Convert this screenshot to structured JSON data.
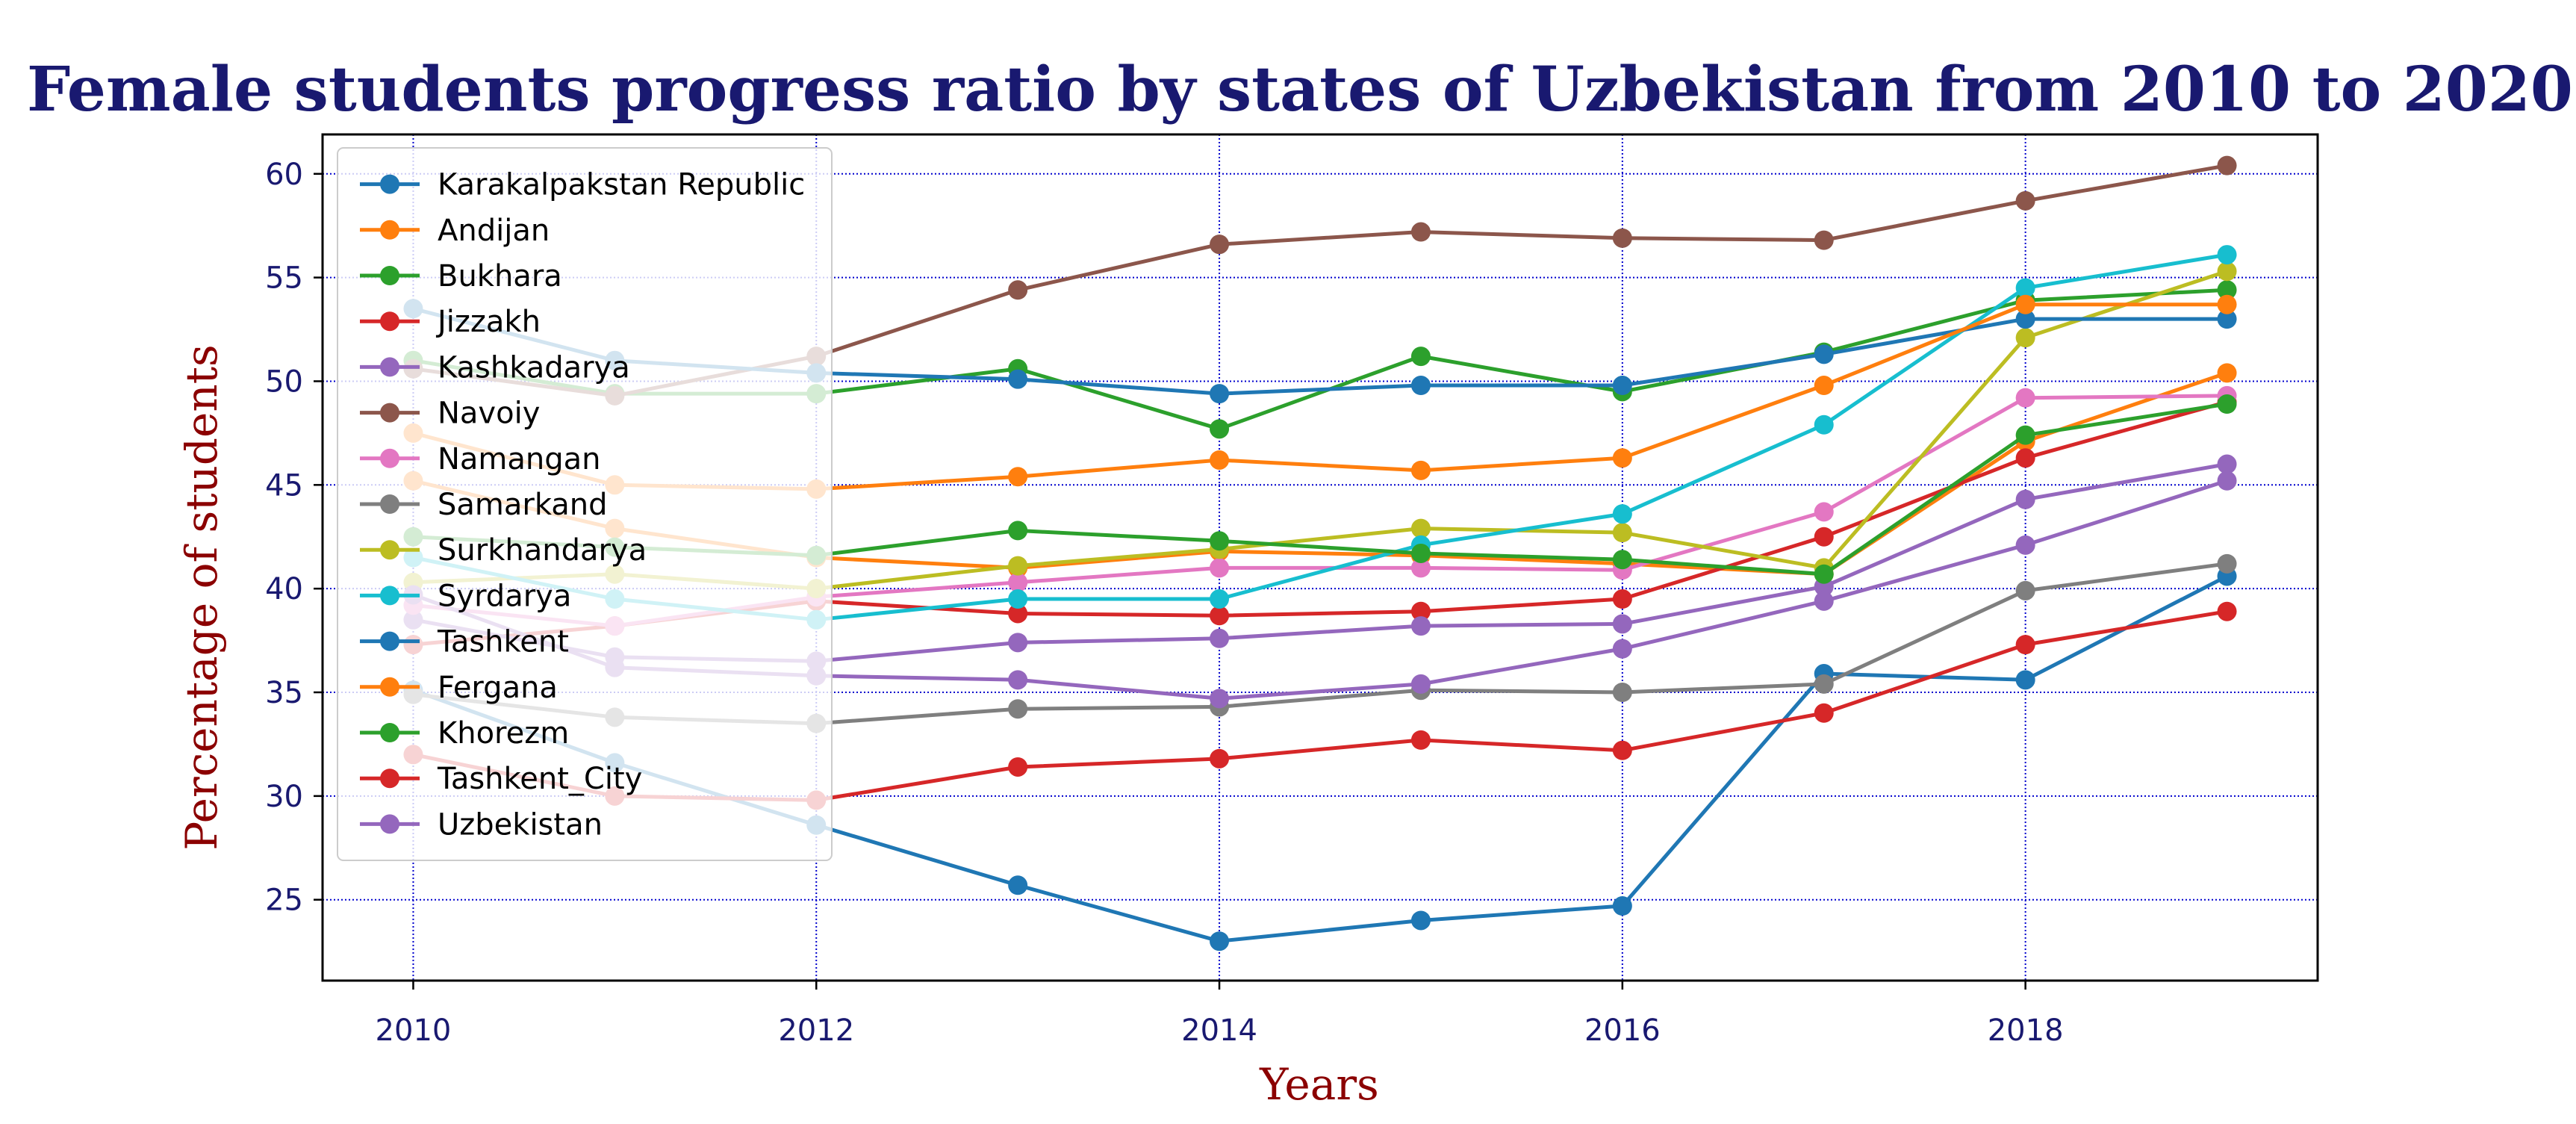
{
  "chart_data": {
    "type": "line",
    "title": "Female students progress ratio by states of Uzbekistan from 2010 to 2020",
    "xlabel": "Years",
    "ylabel": "Percentage of students",
    "xlim": [
      2009.55,
      2019.45
    ],
    "ylim": [
      21.1,
      61.9
    ],
    "xticks": [
      2010,
      2012,
      2014,
      2016,
      2018
    ],
    "yticks": [
      25,
      30,
      35,
      40,
      45,
      50,
      55,
      60
    ],
    "grid": true,
    "grid_style": "dotted",
    "legend_position": "upper left",
    "colors": {
      "title": "#191970",
      "axis_label": "#8b0000",
      "tick_label": "#191970",
      "grid": "#0000cd",
      "axes": "#000000"
    },
    "x": [
      2010,
      2011,
      2012,
      2013,
      2014,
      2015,
      2016,
      2017,
      2018,
      2019
    ],
    "series": [
      {
        "name": "Karakalpakstan Republic",
        "color": "#1f77b4",
        "values": [
          35.1,
          31.6,
          28.6,
          25.7,
          23.0,
          24.0,
          24.7,
          35.9,
          35.6,
          40.6
        ]
      },
      {
        "name": "Andijan",
        "color": "#ff7f0e",
        "values": [
          45.2,
          42.9,
          41.5,
          41.0,
          41.8,
          41.6,
          41.2,
          40.7,
          47.1,
          50.4
        ]
      },
      {
        "name": "Bukhara",
        "color": "#2ca02c",
        "values": [
          51.0,
          49.4,
          49.4,
          50.6,
          47.7,
          51.2,
          49.5,
          51.4,
          53.9,
          54.4
        ]
      },
      {
        "name": "Jizzakh",
        "color": "#d62728",
        "values": [
          37.3,
          38.2,
          39.4,
          38.8,
          38.7,
          38.9,
          39.5,
          42.5,
          46.3,
          49.0
        ]
      },
      {
        "name": "Kashkadarya",
        "color": "#9467bd",
        "values": [
          38.5,
          36.7,
          36.5,
          37.4,
          37.6,
          38.2,
          38.3,
          40.1,
          44.3,
          46.0
        ]
      },
      {
        "name": "Navoiy",
        "color": "#8c564b",
        "values": [
          50.6,
          49.3,
          51.2,
          54.4,
          56.6,
          57.2,
          56.9,
          56.8,
          58.7,
          60.4
        ]
      },
      {
        "name": "Namangan",
        "color": "#e377c2",
        "values": [
          39.2,
          38.2,
          39.6,
          40.3,
          41.0,
          41.0,
          40.9,
          43.7,
          49.2,
          49.3
        ]
      },
      {
        "name": "Samarkand",
        "color": "#7f7f7f",
        "values": [
          34.9,
          33.8,
          33.5,
          34.2,
          34.3,
          35.1,
          35.0,
          35.4,
          39.9,
          41.2
        ]
      },
      {
        "name": "Surkhandarya",
        "color": "#bcbd22",
        "values": [
          40.3,
          40.7,
          40.0,
          41.1,
          41.9,
          42.9,
          42.7,
          41.0,
          52.1,
          55.3
        ]
      },
      {
        "name": "Syrdarya",
        "color": "#17becf",
        "values": [
          41.5,
          39.5,
          38.5,
          39.5,
          39.5,
          42.1,
          43.6,
          47.9,
          54.5,
          56.1
        ]
      },
      {
        "name": "Tashkent",
        "color": "#1f77b4",
        "values": [
          53.5,
          51.0,
          50.4,
          50.1,
          49.4,
          49.8,
          49.8,
          51.3,
          53.0,
          53.0
        ]
      },
      {
        "name": "Fergana",
        "color": "#ff7f0e",
        "values": [
          47.5,
          45.0,
          44.8,
          45.4,
          46.2,
          45.7,
          46.3,
          49.8,
          53.7,
          53.7
        ]
      },
      {
        "name": "Khorezm",
        "color": "#2ca02c",
        "values": [
          42.5,
          42.0,
          41.6,
          42.8,
          42.3,
          41.7,
          41.4,
          40.7,
          47.4,
          48.9
        ]
      },
      {
        "name": "Tashkent_City",
        "color": "#d62728",
        "values": [
          32.0,
          30.0,
          29.8,
          31.4,
          31.8,
          32.7,
          32.2,
          34.0,
          37.3,
          38.9
        ]
      },
      {
        "name": "Uzbekistan",
        "color": "#9467bd",
        "values": [
          39.7,
          36.2,
          35.8,
          35.6,
          34.7,
          35.4,
          37.1,
          39.4,
          42.1,
          45.2
        ]
      }
    ]
  }
}
